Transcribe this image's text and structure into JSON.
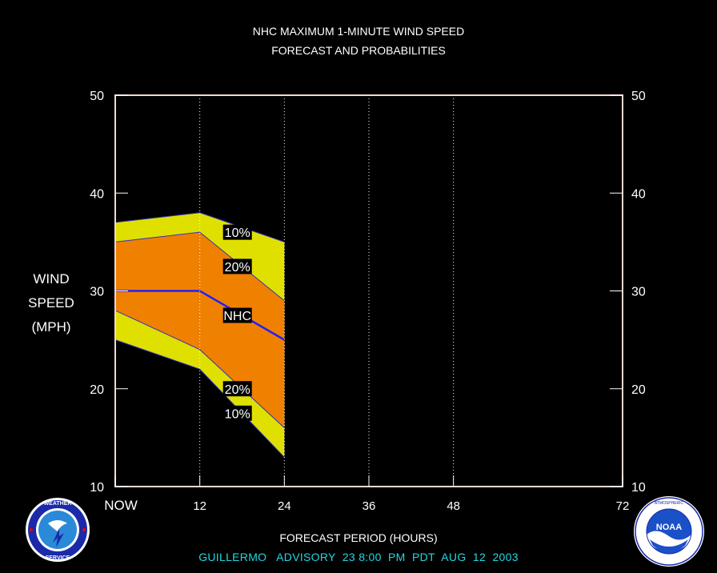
{
  "chart_data": {
    "type": "area",
    "title": "NHC MAXIMUM 1-MINUTE WIND SPEED",
    "subtitle": "FORECAST AND PROBABILITIES",
    "ylabel_lines": [
      "WIND",
      "SPEED",
      "(MPH)"
    ],
    "xlabel": "FORECAST PERIOD (HOURS)",
    "x_ticks": [
      {
        "x": 0,
        "label": "NOW"
      },
      {
        "x": 12,
        "label": "12"
      },
      {
        "x": 24,
        "label": "24"
      },
      {
        "x": 36,
        "label": "36"
      },
      {
        "x": 48,
        "label": "48"
      },
      {
        "x": 72,
        "label": "72"
      }
    ],
    "y_ticks": [
      10,
      20,
      30,
      40,
      50
    ],
    "xlim": [
      0,
      72
    ],
    "ylim": [
      10,
      50
    ],
    "x": [
      0,
      12,
      24
    ],
    "series": [
      {
        "name": "10%",
        "role": "upper-10",
        "values": [
          37,
          38,
          35
        ]
      },
      {
        "name": "20%",
        "role": "upper-20",
        "values": [
          35,
          36,
          29
        ]
      },
      {
        "name": "NHC",
        "role": "nhc",
        "values": [
          30,
          30,
          25
        ]
      },
      {
        "name": "20%",
        "role": "lower-20",
        "values": [
          28,
          24,
          16
        ]
      },
      {
        "name": "10%",
        "role": "lower-10",
        "values": [
          25,
          22,
          13
        ]
      }
    ],
    "band_labels": [
      {
        "text": "10%",
        "x": 17,
        "y": 36.0
      },
      {
        "text": "20%",
        "x": 17,
        "y": 32.5
      },
      {
        "text": "NHC",
        "x": 17,
        "y": 27.5
      },
      {
        "text": "20%",
        "x": 17,
        "y": 20.0
      },
      {
        "text": "10%",
        "x": 17,
        "y": 17.5
      }
    ],
    "vertical_grid_x": [
      12,
      24,
      36,
      48
    ],
    "colors": {
      "outer_band": "#e0e000",
      "inner_band": "#f08000",
      "nhc_line": "#2020ff",
      "frame": "#f4d8d0"
    }
  },
  "footer": {
    "storm": "GUILLERMO",
    "advisory_label": "ADVISORY",
    "advisory_number": "23",
    "time": "8:00  PM  PDT",
    "date": "AUG  12  2003"
  },
  "logos": {
    "nws_icon": "nws-logo-icon",
    "noaa_icon": "noaa-logo-icon",
    "noaa_text": "NOAA"
  }
}
